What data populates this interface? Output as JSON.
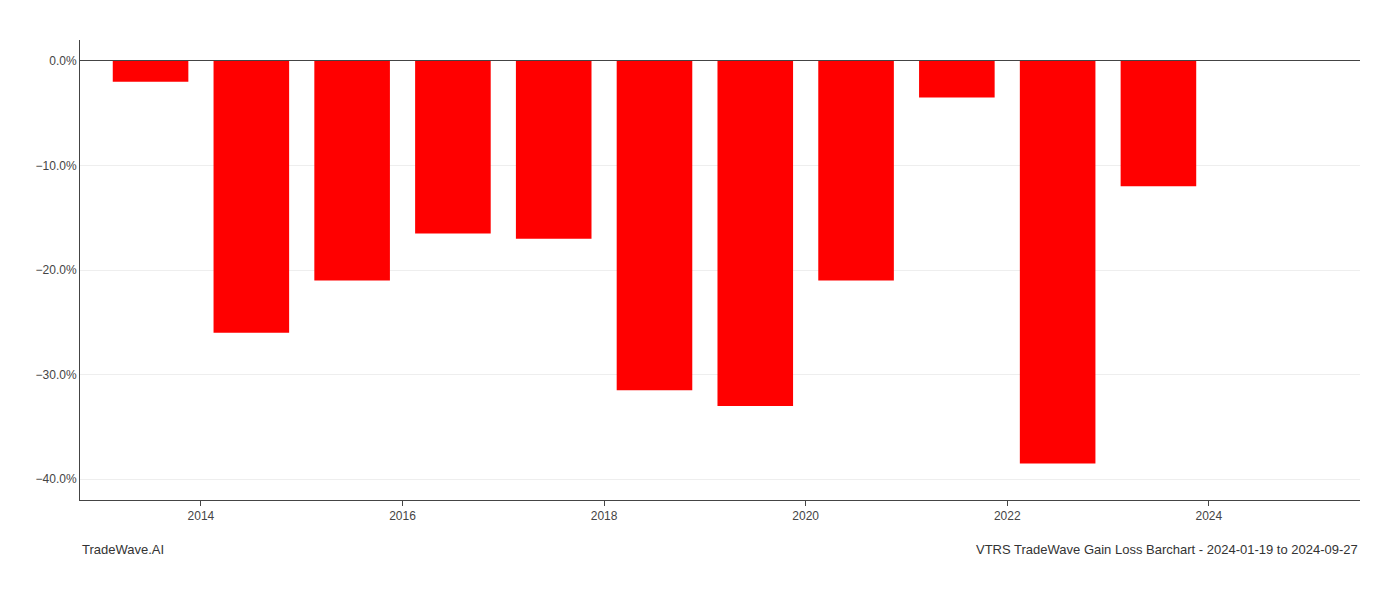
{
  "chart_data": {
    "type": "bar",
    "x": [
      2013.5,
      2014.5,
      2015.5,
      2016.5,
      2017.5,
      2018.5,
      2019.5,
      2020.5,
      2021.5,
      2022.5,
      2023.5
    ],
    "values": [
      -2.0,
      -26.0,
      -21.0,
      -16.5,
      -17.0,
      -31.5,
      -33.0,
      -21.0,
      -3.5,
      -38.5,
      -12.0
    ],
    "color": "#ff0000",
    "xlim": [
      2012.8,
      2025.5
    ],
    "xticks": [
      2014,
      2016,
      2018,
      2020,
      2022,
      2024
    ],
    "ylim": [
      -42,
      2
    ],
    "yticks": [
      {
        "value": 0.0,
        "label": "0.0%"
      },
      {
        "value": -10.0,
        "label": "−10.0%"
      },
      {
        "value": -20.0,
        "label": "−20.0%"
      },
      {
        "value": -30.0,
        "label": "−30.0%"
      },
      {
        "value": -40.0,
        "label": "−40.0%"
      }
    ],
    "grid": true,
    "annotations": [
      "TradeWave.AI",
      "VTRS TradeWave Gain Loss Barchart - 2024-01-19 to 2024-09-27"
    ]
  }
}
